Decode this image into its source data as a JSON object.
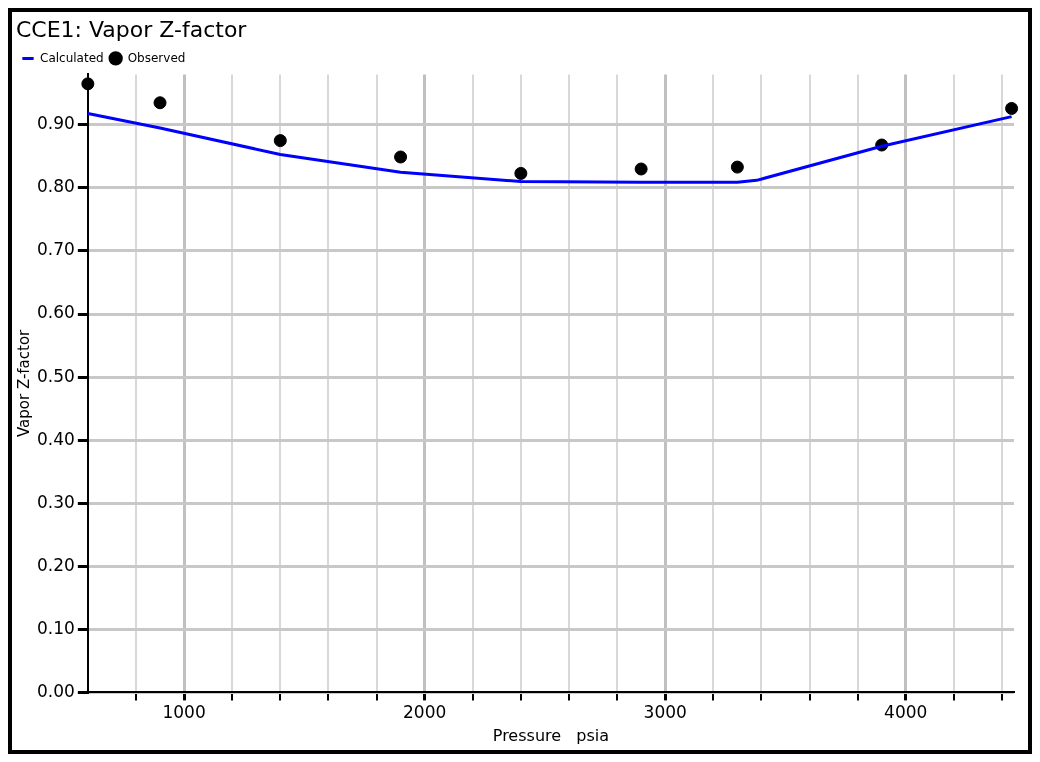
{
  "chart_data": {
    "type": "line",
    "title": "CCE1: Vapor Z-factor",
    "xlabel": "Pressure   psia",
    "ylabel": "Vapor Z-factor",
    "xlim": [
      600,
      4450
    ],
    "xticks": [
      {
        "value": 800,
        "label": null
      },
      {
        "value": 1000,
        "label": "1000"
      },
      {
        "value": 1200,
        "label": null
      },
      {
        "value": 1400,
        "label": null
      },
      {
        "value": 1600,
        "label": null
      },
      {
        "value": 1800,
        "label": null
      },
      {
        "value": 2000,
        "label": "2000"
      },
      {
        "value": 2200,
        "label": null
      },
      {
        "value": 2400,
        "label": null
      },
      {
        "value": 2600,
        "label": null
      },
      {
        "value": 2800,
        "label": null
      },
      {
        "value": 3000,
        "label": "3000"
      },
      {
        "value": 3200,
        "label": null
      },
      {
        "value": 3400,
        "label": null
      },
      {
        "value": 3600,
        "label": null
      },
      {
        "value": 3800,
        "label": null
      },
      {
        "value": 4000,
        "label": "4000"
      },
      {
        "value": 4200,
        "label": null
      },
      {
        "value": 4400,
        "label": null
      }
    ],
    "ylim": [
      0,
      0.98
    ],
    "yticks": [
      {
        "value": 0,
        "label": "0.00"
      },
      {
        "value": 0.1,
        "label": "0.10"
      },
      {
        "value": 0.2,
        "label": "0.20"
      },
      {
        "value": 0.3,
        "label": "0.30"
      },
      {
        "value": 0.4,
        "label": "0.40"
      },
      {
        "value": 0.5,
        "label": "0.50"
      },
      {
        "value": 0.6,
        "label": "0.60"
      },
      {
        "value": 0.7,
        "label": "0.70"
      },
      {
        "value": 0.8,
        "label": "0.80"
      },
      {
        "value": 0.9,
        "label": "0.90"
      }
    ],
    "grid": true,
    "legend": "top left",
    "series": [
      {
        "name": "Calculated",
        "type": "line",
        "color": "#0000ff",
        "marker": "none",
        "line_style": "solid",
        "x": [
          600,
          900,
          1400,
          1900,
          2400,
          2900,
          3300,
          3380,
          3900,
          4440
        ],
        "values": [
          0.918,
          0.895,
          0.853,
          0.825,
          0.81,
          0.809,
          0.809,
          0.812,
          0.866,
          0.913
        ]
      },
      {
        "name": "Observed",
        "type": "scatter",
        "color": "#000000",
        "marker": "circle",
        "x": [
          600,
          900,
          1400,
          1900,
          2400,
          2900,
          3300,
          3900,
          4440
        ],
        "values": [
          0.965,
          0.935,
          0.875,
          0.849,
          0.823,
          0.83,
          0.833,
          0.868,
          0.926
        ]
      }
    ]
  }
}
